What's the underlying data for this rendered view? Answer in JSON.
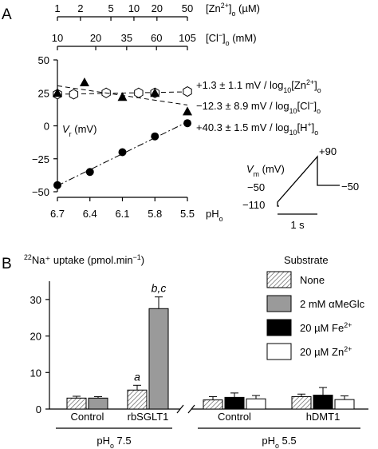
{
  "chart_data": [
    {
      "panel": "A",
      "type": "scatter",
      "top_axes": [
        {
          "label": "[Zn",
          "sup": "2+",
          "sub_suffix": "]",
          "unit": " (µM)",
          "sub": "o",
          "ticks": [
            1,
            2,
            5,
            10,
            20,
            50
          ]
        },
        {
          "label": "[Cl",
          "sup": "−",
          "sub_suffix": "]",
          "unit": " (mM)",
          "sub": "o",
          "ticks": [
            10,
            20,
            35,
            60,
            105
          ]
        }
      ],
      "x": {
        "label": "pH",
        "sub": "o",
        "ticks": [
          6.7,
          6.4,
          6.1,
          5.8,
          5.5
        ],
        "lim": [
          6.7,
          5.5
        ]
      },
      "y": {
        "label": "V",
        "sub": "r",
        "unit": " (mV)",
        "ticks": [
          50,
          25,
          0,
          -25,
          -50
        ],
        "lim": [
          -50,
          50
        ]
      },
      "series": [
        {
          "marker": "open-hexagon",
          "fit": "dashed",
          "x": [
            6.7,
            6.55,
            6.25,
            5.95,
            5.8,
            5.5
          ],
          "y": [
            24,
            24,
            25,
            25,
            25,
            26
          ],
          "annotation": {
            "value": "+1.3 ± 1.1 mV / log",
            "sub1": "10",
            "rest": "[Zn",
            "sup": "2+",
            "tail": "]",
            "sub2": "o"
          }
        },
        {
          "marker": "filled-triangle",
          "fit": "dashed",
          "x": [
            6.7,
            6.45,
            6.1,
            5.8,
            5.5
          ],
          "y": [
            25,
            33,
            22,
            25,
            11
          ],
          "annotation": {
            "value": "−12.3 ± 8.9 mV / log",
            "sub1": "10",
            "rest": "[Cl",
            "sup": "−",
            "tail": "]",
            "sub2": "o"
          }
        },
        {
          "marker": "filled-circle",
          "fit": "dash-dot",
          "x": [
            6.7,
            6.4,
            6.1,
            5.8,
            5.5
          ],
          "y": [
            -45,
            -35,
            -20,
            -8,
            2
          ],
          "annotation": {
            "value": "+40.3 ± 1.5 mV / log",
            "sub1": "10",
            "rest": "[H",
            "sup": "+",
            "tail": "]",
            "sub2": "o"
          }
        }
      ],
      "inset": {
        "ylabel": "V",
        "ysub": "m",
        "yunit": " (mV)",
        "levels": [
          "+90",
          "−50",
          "−110",
          "−50"
        ],
        "scale_bar": "1 s"
      }
    },
    {
      "panel": "B",
      "type": "bar",
      "y": {
        "label": "Na",
        "pre_sup": "22",
        "rest": "⁺ uptake (pmol.min",
        "sup": "−1",
        "close": ")",
        "ticks": [
          0,
          10,
          20,
          30
        ],
        "lim": [
          0,
          35
        ]
      },
      "legend_title": "Substrate",
      "legend": [
        {
          "name": "None",
          "style": "hatched"
        },
        {
          "name": "2 mM αMeGlc",
          "style": "gray"
        },
        {
          "name": "20 µM Fe",
          "sup": "2+",
          "style": "black"
        },
        {
          "name": "20 µM Zn",
          "sup": "2+",
          "style": "white"
        }
      ],
      "groups": [
        {
          "label": "Control",
          "condition": "pH 7.5",
          "bars": [
            {
              "style": "hatched",
              "value": 3.0,
              "err": 0.5
            },
            {
              "style": "gray",
              "value": 3.0,
              "err": 0.4
            }
          ]
        },
        {
          "label": "rbSGLT1",
          "condition": "pH 7.5",
          "bars": [
            {
              "style": "hatched",
              "value": 5.2,
              "err": 1.3,
              "mark": "a"
            },
            {
              "style": "gray",
              "value": 27.5,
              "err": 3.2,
              "mark": "b,c"
            }
          ]
        },
        {
          "label": "Control",
          "condition": "pH 5.5",
          "bars": [
            {
              "style": "hatched",
              "value": 2.5,
              "err": 0.9
            },
            {
              "style": "black",
              "value": 3.2,
              "err": 1.2
            },
            {
              "style": "white",
              "value": 2.8,
              "err": 0.9
            }
          ]
        },
        {
          "label": "hDMT1",
          "condition": "pH 5.5",
          "bars": [
            {
              "style": "hatched",
              "value": 3.4,
              "err": 0.7
            },
            {
              "style": "black",
              "value": 3.8,
              "err": 2.1
            },
            {
              "style": "white",
              "value": 2.6,
              "err": 1.0
            }
          ]
        }
      ],
      "conditions": [
        {
          "text": "pH",
          "sub": "o",
          "value": " 7.5"
        },
        {
          "text": "pH",
          "sub": "o",
          "value": " 5.5"
        }
      ]
    }
  ],
  "colors": {
    "gray_bar": "#9a9a9a",
    "black_bar": "#000000",
    "white_bar": "#ffffff",
    "hatch": "#555555"
  }
}
